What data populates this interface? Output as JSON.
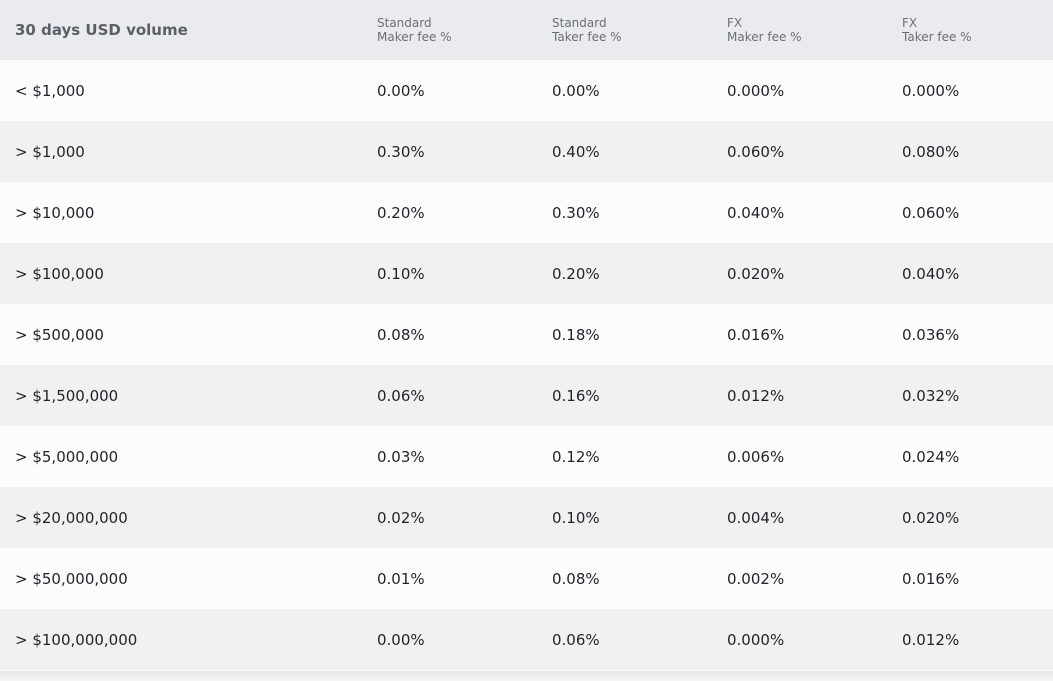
{
  "table": {
    "headers": [
      {
        "line1": "30 days USD volume"
      },
      {
        "line1": "Standard",
        "line2": "Maker fee %"
      },
      {
        "line1": "Standard",
        "line2": "Taker fee %"
      },
      {
        "line1": "FX",
        "line2": "Maker fee %"
      },
      {
        "line1": "FX",
        "line2": "Taker fee %"
      }
    ],
    "rows": [
      [
        "< $1,000",
        "0.00%",
        "0.00%",
        "0.000%",
        "0.000%"
      ],
      [
        "> $1,000",
        "0.30%",
        "0.40%",
        "0.060%",
        "0.080%"
      ],
      [
        "> $10,000",
        "0.20%",
        "0.30%",
        "0.040%",
        "0.060%"
      ],
      [
        "> $100,000",
        "0.10%",
        "0.20%",
        "0.020%",
        "0.040%"
      ],
      [
        "> $500,000",
        "0.08%",
        "0.18%",
        "0.016%",
        "0.036%"
      ],
      [
        "> $1,500,000",
        "0.06%",
        "0.16%",
        "0.012%",
        "0.032%"
      ],
      [
        "> $5,000,000",
        "0.03%",
        "0.12%",
        "0.006%",
        "0.024%"
      ],
      [
        "> $20,000,000",
        "0.02%",
        "0.10%",
        "0.004%",
        "0.020%"
      ],
      [
        "> $50,000,000",
        "0.01%",
        "0.08%",
        "0.002%",
        "0.016%"
      ],
      [
        "> $100,000,000",
        "0.00%",
        "0.06%",
        "0.000%",
        "0.012%"
      ]
    ]
  }
}
